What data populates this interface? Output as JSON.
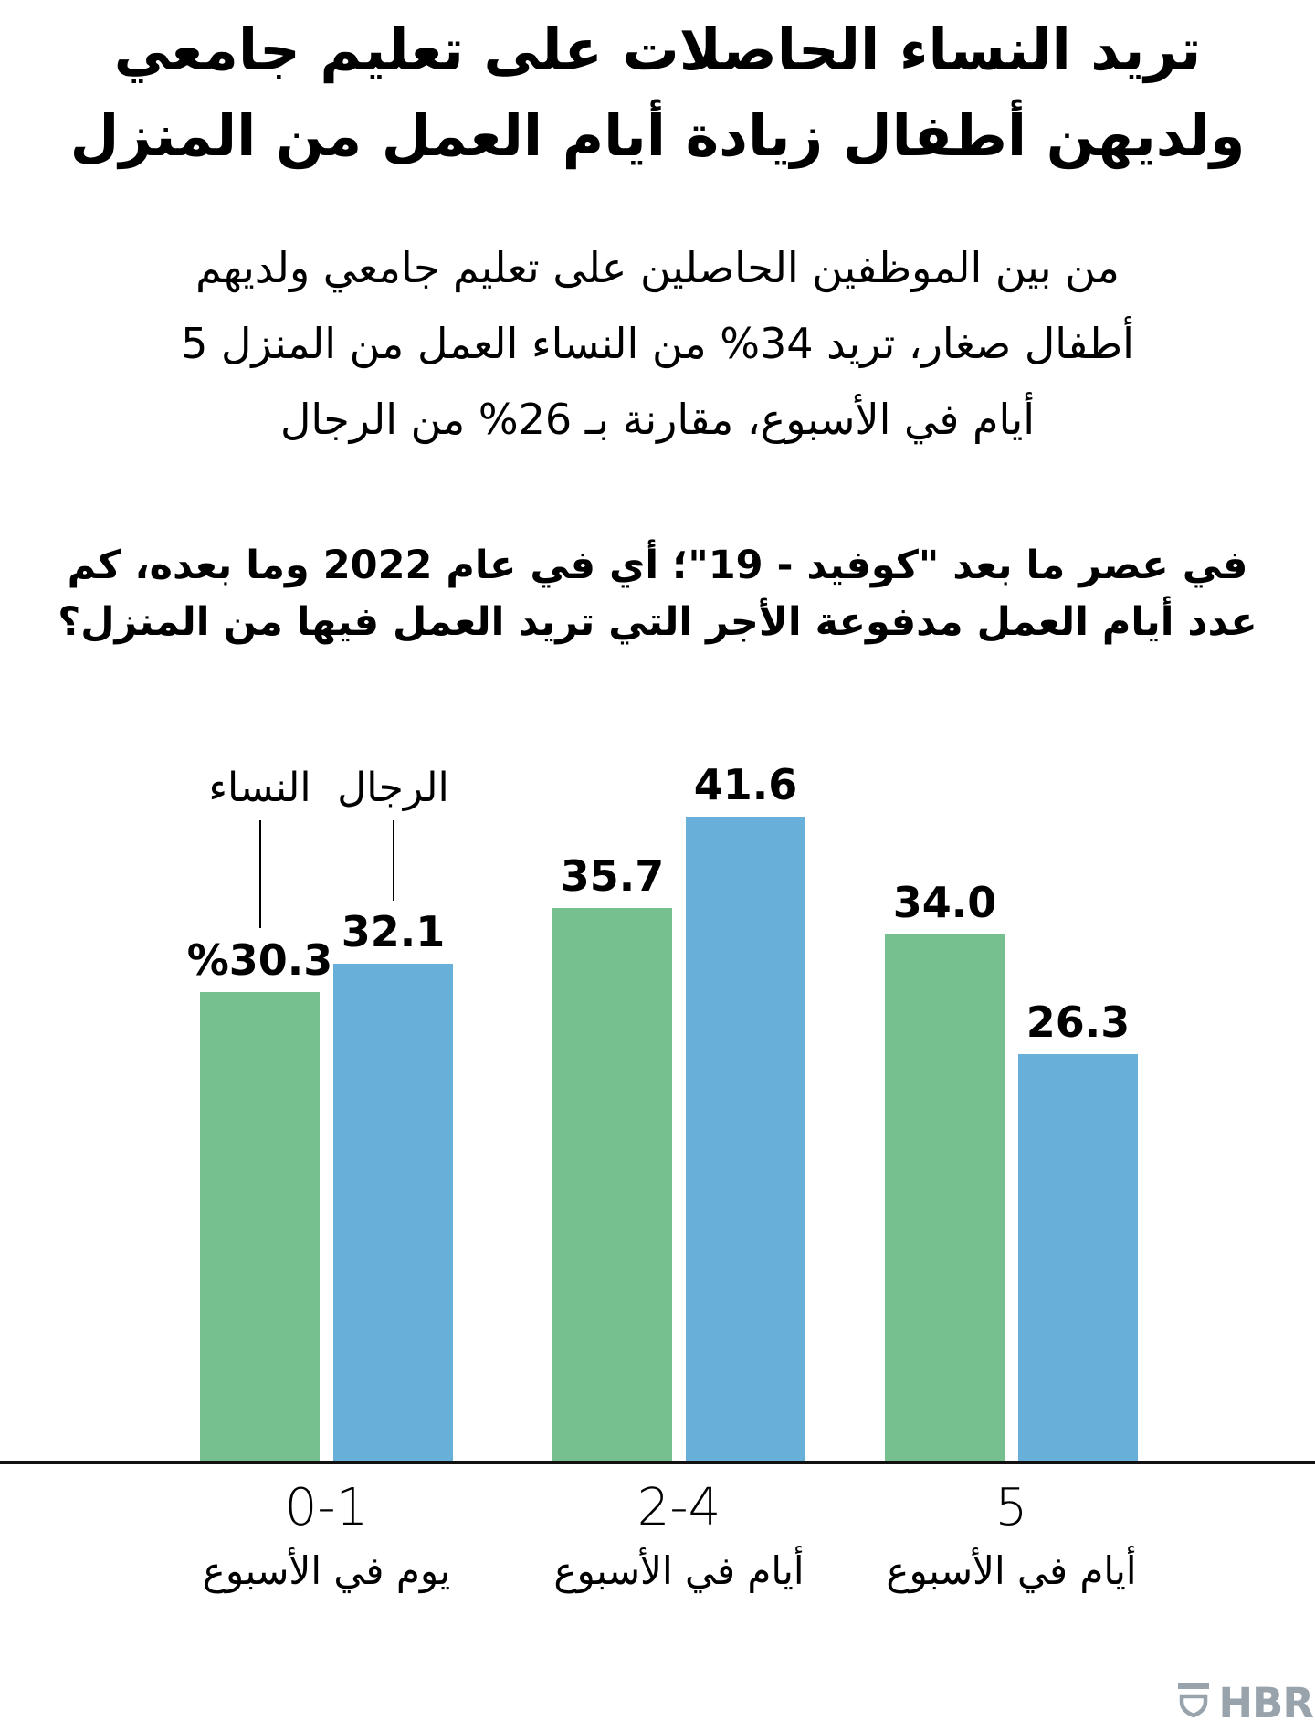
{
  "page": {
    "title_lines": [
      "تريد النساء الحاصلات على تعليم جامعي",
      "ولديهن أطفال زيادة أيام العمل من المنزل"
    ],
    "intro_lines": [
      "من بين الموظفين الحاصلين على تعليم جامعي ولديهم",
      "أطفال صغار، تريد 34% من النساء العمل من المنزل 5",
      "أيام في الأسبوع، مقارنة بـ 26% من الرجال"
    ],
    "question_lines": [
      "في عصر ما بعد \"كوفيد - 19\"؛ أي في عام 2022 وما بعده، كم",
      "عدد أيام العمل مدفوعة الأجر التي تريد العمل فيها من المنزل؟"
    ]
  },
  "chart_data": {
    "type": "bar",
    "title": "في عصر ما بعد \"كوفيد - 19\"؛ أي في عام 2022 وما بعده، كم عدد أيام العمل مدفوعة الأجر التي تريد العمل فيها من المنزل؟",
    "categories": [
      "0-1",
      "2-4",
      "5"
    ],
    "category_units": [
      "يوم في الأسبوع",
      "أيام في الأسبوع",
      "أيام في الأسبوع"
    ],
    "series": [
      {
        "name": "النساء",
        "color": "#76bf8e",
        "values": [
          30.3,
          35.7,
          34.0
        ],
        "labels": [
          "%30.3",
          "35.7",
          "34.0"
        ]
      },
      {
        "name": "الرجال",
        "color": "#68afd9",
        "values": [
          32.1,
          41.6,
          26.3
        ],
        "labels": [
          "32.1",
          "41.6",
          "26.3"
        ]
      }
    ],
    "ylim": [
      0,
      45
    ],
    "grid": false,
    "legend_position": "above-first-group-with-pointer-lines",
    "xlabel": "",
    "ylabel": ""
  },
  "footer": {
    "logo_text": "HBR"
  },
  "colors": {
    "women_bar": "#76bf8e",
    "men_bar": "#68afd9",
    "text": "#000000",
    "axis": "#111111",
    "logo_gray": "#98a3ac",
    "background": "#ffffff"
  }
}
